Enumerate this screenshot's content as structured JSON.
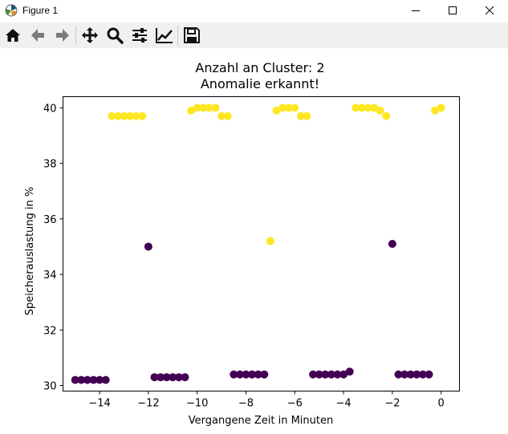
{
  "window": {
    "title": "Figure 1",
    "controls": [
      "minimize-icon",
      "maximize-icon",
      "close-icon"
    ]
  },
  "toolbar": {
    "buttons": [
      {
        "name": "home-button",
        "icon": "home-icon"
      },
      {
        "name": "back-button",
        "icon": "arrow-left-icon"
      },
      {
        "name": "forward-button",
        "icon": "arrow-right-icon"
      },
      {
        "name": "pan-button",
        "icon": "move-icon"
      },
      {
        "name": "zoom-button",
        "icon": "magnifier-icon"
      },
      {
        "name": "subplots-button",
        "icon": "sliders-icon"
      },
      {
        "name": "edit-axis-button",
        "icon": "line-chart-icon"
      },
      {
        "name": "save-button",
        "icon": "floppy-disk-icon"
      }
    ]
  },
  "chart_data": {
    "type": "scatter",
    "title": "Anzahl an Cluster: 2\nAnomalie erkannt!",
    "xlabel": "Vergangene Zeit in Minuten",
    "ylabel": "Speicherauslastung in %",
    "xlim": [
      -15.5,
      0.75
    ],
    "ylim": [
      29.8,
      40.4
    ],
    "xticks": [
      -14,
      -12,
      -10,
      -8,
      -6,
      -4,
      -2,
      0
    ],
    "xtick_labels": [
      "−14",
      "−12",
      "−10",
      "−8",
      "−6",
      "−4",
      "−2",
      "0"
    ],
    "yticks": [
      30,
      32,
      34,
      36,
      38,
      40
    ],
    "grid": false,
    "colors": {
      "cluster_0": "#440154",
      "cluster_1": "#fde725"
    },
    "series": [
      {
        "color": "#440154",
        "points": [
          [
            -15.0,
            30.2
          ],
          [
            -14.75,
            30.2
          ],
          [
            -14.5,
            30.2
          ],
          [
            -14.25,
            30.2
          ],
          [
            -14.0,
            30.2
          ],
          [
            -13.75,
            30.2
          ],
          [
            -11.75,
            30.3
          ],
          [
            -11.5,
            30.3
          ],
          [
            -11.25,
            30.3
          ],
          [
            -11.0,
            30.3
          ],
          [
            -10.75,
            30.3
          ],
          [
            -10.5,
            30.3
          ],
          [
            -8.5,
            30.4
          ],
          [
            -8.25,
            30.4
          ],
          [
            -8.0,
            30.4
          ],
          [
            -7.75,
            30.4
          ],
          [
            -7.5,
            30.4
          ],
          [
            -7.25,
            30.4
          ],
          [
            -5.25,
            30.4
          ],
          [
            -5.0,
            30.4
          ],
          [
            -4.75,
            30.4
          ],
          [
            -4.5,
            30.4
          ],
          [
            -4.25,
            30.4
          ],
          [
            -4.0,
            30.4
          ],
          [
            -3.75,
            30.5
          ],
          [
            -1.75,
            30.4
          ],
          [
            -1.5,
            30.4
          ],
          [
            -1.25,
            30.4
          ],
          [
            -1.0,
            30.4
          ],
          [
            -0.75,
            30.4
          ],
          [
            -0.5,
            30.4
          ],
          [
            -12.0,
            35.0
          ],
          [
            -2.0,
            35.1
          ]
        ]
      },
      {
        "color": "#fde725",
        "points": [
          [
            -13.5,
            39.7
          ],
          [
            -13.25,
            39.7
          ],
          [
            -13.0,
            39.7
          ],
          [
            -12.75,
            39.7
          ],
          [
            -12.5,
            39.7
          ],
          [
            -12.25,
            39.7
          ],
          [
            -10.25,
            39.9
          ],
          [
            -10.0,
            40.0
          ],
          [
            -9.75,
            40.0
          ],
          [
            -9.5,
            40.0
          ],
          [
            -9.25,
            40.0
          ],
          [
            -9.0,
            39.7
          ],
          [
            -8.75,
            39.7
          ],
          [
            -6.75,
            39.9
          ],
          [
            -6.5,
            40.0
          ],
          [
            -6.25,
            40.0
          ],
          [
            -6.0,
            40.0
          ],
          [
            -5.75,
            39.7
          ],
          [
            -5.5,
            39.7
          ],
          [
            -3.5,
            40.0
          ],
          [
            -3.25,
            40.0
          ],
          [
            -3.0,
            40.0
          ],
          [
            -2.75,
            40.0
          ],
          [
            -2.5,
            39.9
          ],
          [
            -2.25,
            39.7
          ],
          [
            -0.25,
            39.9
          ],
          [
            0.0,
            40.0
          ],
          [
            -7.0,
            35.2
          ]
        ]
      }
    ]
  }
}
